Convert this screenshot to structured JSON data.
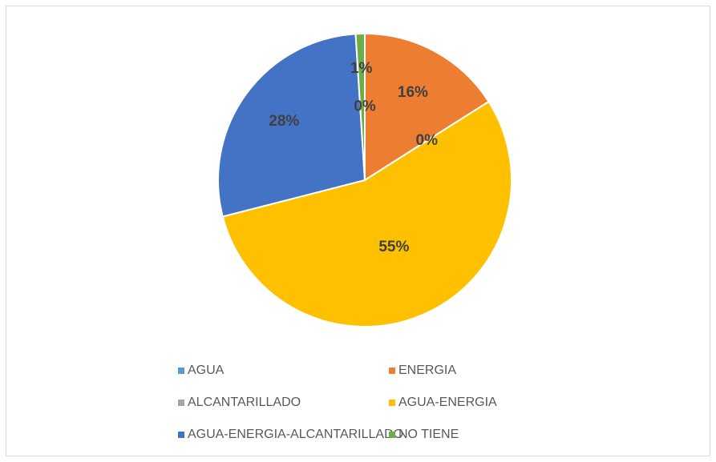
{
  "chart_data": {
    "type": "pie",
    "categories": [
      "AGUA",
      "ENERGIA",
      "ALCANTARILLADO",
      "AGUA-ENERGIA",
      "AGUA-ENERGIA-ALCANTARILLADO",
      "NO TIENE"
    ],
    "values": [
      0,
      16,
      0,
      55,
      28,
      1
    ],
    "value_labels": [
      "0%",
      "16%",
      "0%",
      "55%",
      "28%",
      "1%"
    ],
    "colors": [
      "#5b9bd5",
      "#ed7d31",
      "#a5a5a5",
      "#ffc000",
      "#4472c4",
      "#70ad47"
    ]
  }
}
